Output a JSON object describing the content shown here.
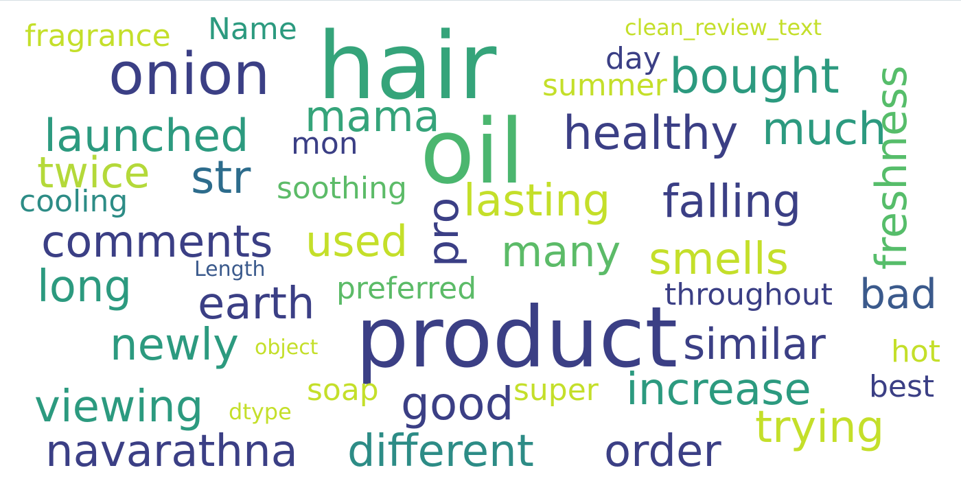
{
  "word_cloud": {
    "words": [
      {
        "key": "hair",
        "text": "hair",
        "color": "#35a47a"
      },
      {
        "key": "oil",
        "text": "oil",
        "color": "#4bb66f"
      },
      {
        "key": "product",
        "text": "product",
        "color": "#3b3f85"
      },
      {
        "key": "onion",
        "text": "onion",
        "color": "#3b3f85"
      },
      {
        "key": "bought",
        "text": "bought",
        "color": "#2c9a7f"
      },
      {
        "key": "healthy",
        "text": "healthy",
        "color": "#3b3f85"
      },
      {
        "key": "much",
        "text": "much",
        "color": "#2c9a7f"
      },
      {
        "key": "freshness",
        "text": "freshness",
        "color": "#56bd6a"
      },
      {
        "key": "launched",
        "text": "launched",
        "color": "#2c9a7f"
      },
      {
        "key": "mama",
        "text": "mama",
        "color": "#35a47a"
      },
      {
        "key": "twice",
        "text": "twice",
        "color": "#b4d93a"
      },
      {
        "key": "str",
        "text": "str",
        "color": "#2d6c8c"
      },
      {
        "key": "lasting",
        "text": "lasting",
        "color": "#c4df2a"
      },
      {
        "key": "falling",
        "text": "falling",
        "color": "#3b3f85"
      },
      {
        "key": "pro",
        "text": "pro",
        "color": "#3b3f85"
      },
      {
        "key": "comments",
        "text": "comments",
        "color": "#3b3f85"
      },
      {
        "key": "used",
        "text": "used",
        "color": "#c4df2a"
      },
      {
        "key": "many",
        "text": "many",
        "color": "#5cbb68"
      },
      {
        "key": "smells",
        "text": "smells",
        "color": "#c4df2a"
      },
      {
        "key": "long",
        "text": "long",
        "color": "#2c9a7f"
      },
      {
        "key": "earth",
        "text": "earth",
        "color": "#3b3f85"
      },
      {
        "key": "preferred",
        "text": "preferred",
        "color": "#5cbb68"
      },
      {
        "key": "throughout",
        "text": "throughout",
        "color": "#3b3f85"
      },
      {
        "key": "bad",
        "text": "bad",
        "color": "#3b5a8c"
      },
      {
        "key": "newly",
        "text": "newly",
        "color": "#2c9a7f"
      },
      {
        "key": "similar",
        "text": "similar",
        "color": "#3b3f85"
      },
      {
        "key": "hot",
        "text": "hot",
        "color": "#c4df2a"
      },
      {
        "key": "viewing",
        "text": "viewing",
        "color": "#2c9a7f"
      },
      {
        "key": "good",
        "text": "good",
        "color": "#3b3f85"
      },
      {
        "key": "increase",
        "text": "increase",
        "color": "#2c9a7f"
      },
      {
        "key": "trying",
        "text": "trying",
        "color": "#c4df2a"
      },
      {
        "key": "best",
        "text": "best",
        "color": "#3b3f85"
      },
      {
        "key": "navarathna",
        "text": "navarathna",
        "color": "#3b3f85"
      },
      {
        "key": "different",
        "text": "different",
        "color": "#2d8c86"
      },
      {
        "key": "order",
        "text": "order",
        "color": "#3b3f85"
      },
      {
        "key": "fragrance",
        "text": "fragrance",
        "color": "#c4df2a"
      },
      {
        "key": "name",
        "text": "Name",
        "color": "#2c9a7f"
      },
      {
        "key": "day",
        "text": "day",
        "color": "#3b3f85"
      },
      {
        "key": "summer",
        "text": "summer",
        "color": "#c4df2a"
      },
      {
        "key": "clean_review_text",
        "text": "clean_review_text",
        "color": "#c4df2a"
      },
      {
        "key": "mon",
        "text": "mon",
        "color": "#3b3f85"
      },
      {
        "key": "soothing",
        "text": "soothing",
        "color": "#5cbb68"
      },
      {
        "key": "cooling",
        "text": "cooling",
        "color": "#2d8c86"
      },
      {
        "key": "length",
        "text": "Length",
        "color": "#3b5a8c"
      },
      {
        "key": "object",
        "text": "object",
        "color": "#c4df2a"
      },
      {
        "key": "soap",
        "text": "soap",
        "color": "#c4df2a"
      },
      {
        "key": "super",
        "text": "super",
        "color": "#c4df2a"
      },
      {
        "key": "dtype",
        "text": "dtype",
        "color": "#c4df2a"
      }
    ]
  }
}
